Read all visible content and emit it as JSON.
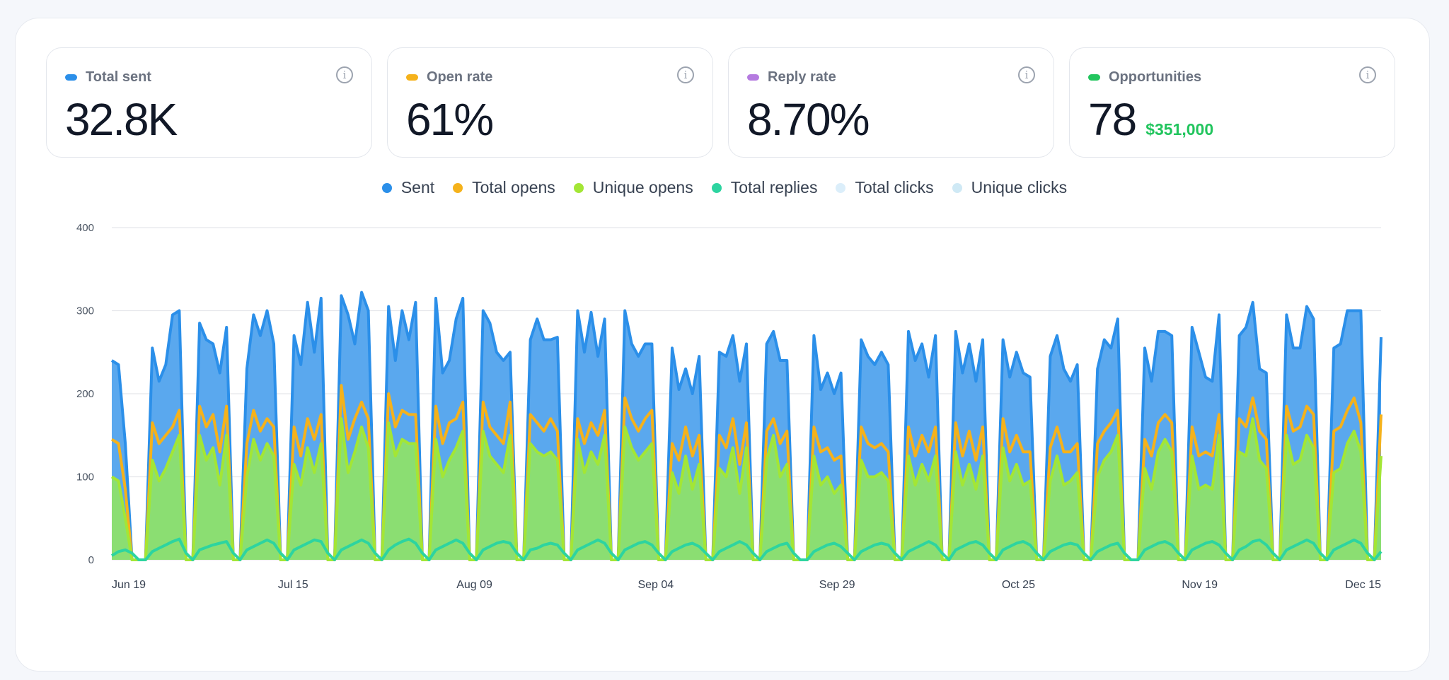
{
  "cards": [
    {
      "title": "Total sent",
      "value": "32.8K",
      "sub": "",
      "color": "#2b8fe9"
    },
    {
      "title": "Open rate",
      "value": "61%",
      "sub": "",
      "color": "#f5b21b"
    },
    {
      "title": "Reply rate",
      "value": "8.70%",
      "sub": "",
      "color": "#b57be0"
    },
    {
      "title": "Opportunities",
      "value": "78",
      "sub": "$351,000",
      "color": "#22c55e"
    }
  ],
  "info_glyph": "i",
  "chart_data": {
    "type": "area",
    "title": "",
    "xlabel": "",
    "ylabel": "",
    "ylim": [
      0,
      400
    ],
    "yticks": [
      "0",
      "100",
      "200",
      "300",
      "400"
    ],
    "grid": true,
    "legend_position": "top-center",
    "x_tick_labels": [
      "Jun 19",
      "Jul 15",
      "Aug 09",
      "Sep 04",
      "Sep 29",
      "Oct 25",
      "Nov 19",
      "Dec 15"
    ],
    "x_start": "2024-06-19",
    "x_end": "2024-12-15",
    "series": [
      {
        "name": "Sent",
        "color": "#2b8fe9",
        "fill": "#5aa8ee",
        "values": [
          240,
          235,
          140,
          0,
          0,
          0,
          255,
          215,
          235,
          295,
          300,
          0,
          0,
          285,
          265,
          260,
          225,
          280,
          0,
          0,
          230,
          295,
          270,
          300,
          260,
          0,
          0,
          270,
          235,
          310,
          250,
          315,
          0,
          0,
          318,
          295,
          260,
          322,
          300,
          0,
          0,
          305,
          240,
          300,
          265,
          310,
          0,
          0,
          315,
          225,
          240,
          290,
          315,
          0,
          0,
          300,
          285,
          250,
          240,
          250,
          0,
          0,
          265,
          290,
          265,
          265,
          268,
          0,
          0,
          300,
          250,
          298,
          245,
          290,
          0,
          0,
          300,
          260,
          245,
          260,
          260,
          0,
          0,
          255,
          205,
          230,
          200,
          245,
          0,
          0,
          250,
          245,
          270,
          215,
          260,
          0,
          0,
          260,
          275,
          240,
          240,
          0,
          0,
          0,
          270,
          205,
          225,
          200,
          225,
          0,
          0,
          265,
          245,
          235,
          250,
          235,
          0,
          0,
          275,
          240,
          260,
          220,
          270,
          0,
          0,
          275,
          225,
          260,
          215,
          265,
          0,
          0,
          265,
          220,
          250,
          225,
          220,
          0,
          0,
          245,
          270,
          230,
          215,
          235,
          0,
          0,
          230,
          265,
          255,
          290,
          0,
          0,
          0,
          255,
          215,
          275,
          275,
          270,
          0,
          0,
          280,
          250,
          220,
          215,
          295,
          0,
          0,
          270,
          280,
          310,
          230,
          225,
          0,
          0,
          295,
          255,
          255,
          305,
          290,
          0,
          0,
          255,
          260,
          300,
          300,
          300,
          0,
          0,
          268
        ]
      },
      {
        "name": "Total opens",
        "color": "#f5b21b",
        "fill": "",
        "values": [
          145,
          140,
          85,
          0,
          0,
          0,
          165,
          140,
          150,
          160,
          180,
          0,
          0,
          185,
          160,
          175,
          130,
          185,
          0,
          0,
          140,
          180,
          155,
          170,
          160,
          0,
          0,
          160,
          125,
          170,
          145,
          175,
          0,
          0,
          210,
          145,
          170,
          190,
          170,
          0,
          0,
          200,
          160,
          180,
          175,
          175,
          0,
          0,
          185,
          140,
          165,
          170,
          190,
          0,
          0,
          190,
          160,
          150,
          140,
          190,
          0,
          0,
          175,
          165,
          155,
          170,
          155,
          0,
          0,
          170,
          140,
          165,
          150,
          180,
          0,
          0,
          195,
          170,
          155,
          170,
          180,
          0,
          0,
          140,
          120,
          160,
          125,
          150,
          0,
          0,
          150,
          135,
          170,
          115,
          165,
          0,
          0,
          155,
          170,
          140,
          155,
          0,
          0,
          0,
          160,
          130,
          135,
          120,
          125,
          0,
          0,
          160,
          140,
          135,
          140,
          130,
          0,
          0,
          160,
          125,
          150,
          130,
          160,
          0,
          0,
          165,
          125,
          155,
          120,
          160,
          0,
          0,
          170,
          130,
          150,
          130,
          130,
          0,
          0,
          135,
          160,
          130,
          130,
          140,
          0,
          0,
          140,
          155,
          165,
          180,
          0,
          0,
          0,
          145,
          125,
          165,
          175,
          165,
          0,
          0,
          160,
          125,
          130,
          125,
          175,
          0,
          0,
          170,
          160,
          195,
          155,
          145,
          0,
          0,
          185,
          155,
          160,
          185,
          175,
          0,
          0,
          155,
          160,
          180,
          195,
          165,
          0,
          0,
          175
        ]
      },
      {
        "name": "Unique opens",
        "color": "#a3e635",
        "fill": "#8bde72",
        "values": [
          100,
          95,
          50,
          0,
          0,
          0,
          120,
          95,
          110,
          130,
          150,
          0,
          0,
          150,
          120,
          135,
          90,
          150,
          0,
          0,
          100,
          145,
          120,
          140,
          125,
          0,
          0,
          115,
          90,
          135,
          105,
          140,
          0,
          0,
          170,
          105,
          130,
          160,
          135,
          0,
          0,
          165,
          125,
          145,
          140,
          140,
          0,
          0,
          145,
          100,
          120,
          135,
          155,
          0,
          0,
          155,
          125,
          115,
          105,
          150,
          0,
          0,
          140,
          130,
          125,
          130,
          120,
          0,
          0,
          145,
          105,
          130,
          115,
          150,
          0,
          0,
          160,
          135,
          120,
          130,
          140,
          0,
          0,
          105,
          80,
          125,
          85,
          115,
          0,
          0,
          110,
          100,
          135,
          80,
          135,
          0,
          0,
          120,
          150,
          100,
          115,
          0,
          0,
          0,
          125,
          90,
          100,
          80,
          90,
          0,
          0,
          120,
          100,
          100,
          105,
          95,
          0,
          0,
          125,
          90,
          115,
          95,
          125,
          0,
          0,
          130,
          90,
          115,
          85,
          125,
          0,
          0,
          135,
          95,
          115,
          90,
          95,
          0,
          0,
          95,
          125,
          90,
          95,
          105,
          0,
          0,
          100,
          120,
          130,
          150,
          0,
          0,
          0,
          110,
          85,
          130,
          145,
          130,
          0,
          0,
          125,
          85,
          90,
          85,
          150,
          0,
          0,
          130,
          125,
          170,
          120,
          110,
          0,
          0,
          150,
          115,
          120,
          150,
          135,
          0,
          0,
          105,
          110,
          140,
          155,
          130,
          0,
          0,
          125
        ]
      },
      {
        "name": "Total replies",
        "color": "#2dd4a0",
        "fill": "",
        "values": [
          5,
          10,
          12,
          8,
          0,
          0,
          10,
          14,
          18,
          22,
          25,
          8,
          0,
          12,
          15,
          18,
          20,
          22,
          8,
          0,
          12,
          16,
          20,
          24,
          20,
          8,
          0,
          12,
          16,
          20,
          24,
          22,
          8,
          0,
          12,
          16,
          20,
          24,
          20,
          8,
          0,
          12,
          18,
          22,
          25,
          20,
          8,
          0,
          12,
          16,
          20,
          24,
          20,
          8,
          0,
          12,
          16,
          20,
          22,
          20,
          8,
          0,
          12,
          14,
          18,
          20,
          18,
          8,
          0,
          12,
          16,
          20,
          24,
          20,
          8,
          0,
          12,
          16,
          20,
          22,
          18,
          8,
          0,
          10,
          14,
          18,
          20,
          16,
          8,
          0,
          10,
          14,
          18,
          22,
          18,
          8,
          0,
          10,
          14,
          18,
          20,
          8,
          0,
          0,
          10,
          14,
          18,
          20,
          16,
          8,
          0,
          10,
          14,
          18,
          20,
          18,
          8,
          0,
          10,
          14,
          18,
          22,
          18,
          8,
          0,
          12,
          16,
          20,
          22,
          18,
          8,
          0,
          12,
          16,
          20,
          22,
          18,
          8,
          0,
          10,
          14,
          18,
          20,
          18,
          8,
          0,
          10,
          14,
          18,
          20,
          8,
          0,
          0,
          12,
          16,
          20,
          22,
          18,
          8,
          0,
          12,
          16,
          20,
          22,
          18,
          8,
          0,
          12,
          16,
          22,
          24,
          18,
          8,
          0,
          12,
          16,
          20,
          24,
          20,
          8,
          0,
          12,
          16,
          20,
          24,
          20,
          8,
          0,
          10
        ]
      },
      {
        "name": "Total clicks",
        "color": "#dbeefa",
        "fill": "",
        "values": []
      },
      {
        "name": "Unique clicks",
        "color": "#cfe9f5",
        "fill": "",
        "values": []
      }
    ]
  }
}
